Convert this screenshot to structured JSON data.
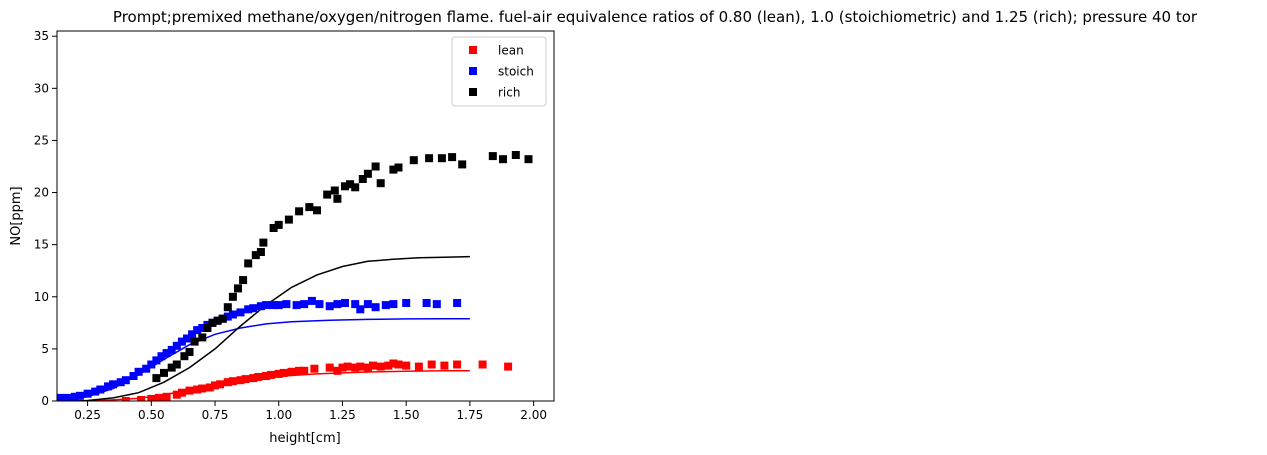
{
  "chart_data": {
    "type": "scatter",
    "title": "Prompt;premixed methane/oxygen/nitrogen flame. fuel-air equivalence ratios of 0.80 (lean), 1.0 (stoichiometric) and 1.25 (rich); pressure 40 tor",
    "xlabel": "height[cm]",
    "ylabel": "NO[ppm]",
    "xlim": [
      0.13,
      2.08
    ],
    "ylim": [
      0,
      35.5
    ],
    "xticks": [
      0.25,
      0.5,
      0.75,
      1.0,
      1.25,
      1.5,
      1.75,
      2.0
    ],
    "xtick_labels": [
      "0.25",
      "0.50",
      "0.75",
      "1.00",
      "1.25",
      "1.50",
      "1.75",
      "2.00"
    ],
    "yticks": [
      0,
      5,
      10,
      15,
      20,
      25,
      30,
      35
    ],
    "ytick_labels": [
      "0",
      "5",
      "10",
      "15",
      "20",
      "25",
      "30",
      "35"
    ],
    "grid": false,
    "legend": "top-right",
    "series": [
      {
        "name": "lean",
        "color": "#ff0000",
        "points": [
          [
            0.4,
            0.0
          ],
          [
            0.46,
            0.1
          ],
          [
            0.5,
            0.2
          ],
          [
            0.53,
            0.3
          ],
          [
            0.56,
            0.4
          ],
          [
            0.6,
            0.6
          ],
          [
            0.62,
            0.8
          ],
          [
            0.65,
            1.0
          ],
          [
            0.68,
            1.1
          ],
          [
            0.7,
            1.2
          ],
          [
            0.73,
            1.3
          ],
          [
            0.75,
            1.5
          ],
          [
            0.77,
            1.6
          ],
          [
            0.8,
            1.8
          ],
          [
            0.82,
            1.9
          ],
          [
            0.85,
            2.0
          ],
          [
            0.87,
            2.1
          ],
          [
            0.9,
            2.2
          ],
          [
            0.92,
            2.3
          ],
          [
            0.95,
            2.4
          ],
          [
            0.97,
            2.5
          ],
          [
            1.0,
            2.6
          ],
          [
            1.02,
            2.7
          ],
          [
            1.05,
            2.8
          ],
          [
            1.08,
            2.9
          ],
          [
            1.1,
            2.9
          ],
          [
            1.14,
            3.1
          ],
          [
            1.2,
            3.2
          ],
          [
            1.23,
            2.9
          ],
          [
            1.25,
            3.2
          ],
          [
            1.27,
            3.3
          ],
          [
            1.3,
            3.2
          ],
          [
            1.32,
            3.3
          ],
          [
            1.35,
            3.2
          ],
          [
            1.37,
            3.4
          ],
          [
            1.4,
            3.3
          ],
          [
            1.43,
            3.4
          ],
          [
            1.45,
            3.6
          ],
          [
            1.47,
            3.5
          ],
          [
            1.5,
            3.4
          ],
          [
            1.55,
            3.3
          ],
          [
            1.6,
            3.5
          ],
          [
            1.65,
            3.4
          ],
          [
            1.7,
            3.5
          ],
          [
            1.8,
            3.5
          ],
          [
            1.9,
            3.3
          ]
        ],
        "model_x": [
          0.15,
          0.3,
          0.45,
          0.55,
          0.65,
          0.75,
          0.85,
          0.95,
          1.05,
          1.15,
          1.25,
          1.35,
          1.5,
          1.65,
          1.75
        ],
        "model_y": [
          0.0,
          0.05,
          0.25,
          0.6,
          1.05,
          1.55,
          1.95,
          2.25,
          2.45,
          2.6,
          2.7,
          2.78,
          2.85,
          2.9,
          2.9
        ]
      },
      {
        "name": "stoich",
        "color": "#0000ff",
        "points": [
          [
            0.14,
            0.3
          ],
          [
            0.17,
            0.3
          ],
          [
            0.2,
            0.4
          ],
          [
            0.22,
            0.5
          ],
          [
            0.25,
            0.7
          ],
          [
            0.28,
            0.9
          ],
          [
            0.3,
            1.1
          ],
          [
            0.33,
            1.4
          ],
          [
            0.35,
            1.6
          ],
          [
            0.38,
            1.8
          ],
          [
            0.4,
            2.0
          ],
          [
            0.43,
            2.4
          ],
          [
            0.45,
            2.8
          ],
          [
            0.48,
            3.1
          ],
          [
            0.5,
            3.5
          ],
          [
            0.52,
            3.9
          ],
          [
            0.54,
            4.3
          ],
          [
            0.56,
            4.6
          ],
          [
            0.58,
            4.9
          ],
          [
            0.6,
            5.3
          ],
          [
            0.62,
            5.7
          ],
          [
            0.64,
            6.0
          ],
          [
            0.66,
            6.4
          ],
          [
            0.68,
            6.8
          ],
          [
            0.7,
            7.0
          ],
          [
            0.72,
            7.3
          ],
          [
            0.74,
            7.5
          ],
          [
            0.76,
            7.7
          ],
          [
            0.78,
            7.9
          ],
          [
            0.8,
            8.1
          ],
          [
            0.82,
            8.3
          ],
          [
            0.85,
            8.5
          ],
          [
            0.88,
            8.8
          ],
          [
            0.9,
            8.9
          ],
          [
            0.93,
            9.1
          ],
          [
            0.95,
            9.2
          ],
          [
            0.98,
            9.2
          ],
          [
            1.0,
            9.2
          ],
          [
            1.03,
            9.3
          ],
          [
            1.07,
            9.2
          ],
          [
            1.1,
            9.3
          ],
          [
            1.13,
            9.6
          ],
          [
            1.16,
            9.3
          ],
          [
            1.2,
            9.1
          ],
          [
            1.23,
            9.3
          ],
          [
            1.26,
            9.4
          ],
          [
            1.3,
            9.3
          ],
          [
            1.32,
            8.8
          ],
          [
            1.35,
            9.3
          ],
          [
            1.38,
            9.0
          ],
          [
            1.42,
            9.2
          ],
          [
            1.45,
            9.3
          ],
          [
            1.5,
            9.4
          ],
          [
            1.58,
            9.4
          ],
          [
            1.62,
            9.3
          ],
          [
            1.7,
            9.4
          ]
        ],
        "model_x": [
          0.15,
          0.25,
          0.35,
          0.45,
          0.55,
          0.65,
          0.75,
          0.85,
          0.95,
          1.05,
          1.2,
          1.35,
          1.5,
          1.65,
          1.75
        ],
        "model_y": [
          0.1,
          0.4,
          1.2,
          2.5,
          4.0,
          5.4,
          6.4,
          7.0,
          7.4,
          7.6,
          7.75,
          7.83,
          7.88,
          7.9,
          7.9
        ]
      },
      {
        "name": "rich",
        "color": "#000000",
        "points": [
          [
            0.52,
            2.2
          ],
          [
            0.55,
            2.7
          ],
          [
            0.58,
            3.2
          ],
          [
            0.6,
            3.5
          ],
          [
            0.63,
            4.3
          ],
          [
            0.65,
            4.7
          ],
          [
            0.67,
            5.7
          ],
          [
            0.7,
            6.1
          ],
          [
            0.72,
            7.0
          ],
          [
            0.74,
            7.5
          ],
          [
            0.76,
            7.7
          ],
          [
            0.78,
            7.9
          ],
          [
            0.8,
            9.0
          ],
          [
            0.82,
            10.0
          ],
          [
            0.84,
            10.8
          ],
          [
            0.86,
            11.6
          ],
          [
            0.88,
            13.2
          ],
          [
            0.91,
            14.0
          ],
          [
            0.93,
            14.3
          ],
          [
            0.94,
            15.2
          ],
          [
            0.98,
            16.6
          ],
          [
            1.0,
            16.9
          ],
          [
            1.04,
            17.4
          ],
          [
            1.08,
            18.2
          ],
          [
            1.12,
            18.6
          ],
          [
            1.15,
            18.3
          ],
          [
            1.19,
            19.8
          ],
          [
            1.22,
            20.2
          ],
          [
            1.23,
            19.4
          ],
          [
            1.26,
            20.6
          ],
          [
            1.28,
            20.8
          ],
          [
            1.3,
            20.5
          ],
          [
            1.33,
            21.3
          ],
          [
            1.35,
            21.8
          ],
          [
            1.38,
            22.5
          ],
          [
            1.4,
            20.9
          ],
          [
            1.45,
            22.2
          ],
          [
            1.47,
            22.4
          ],
          [
            1.53,
            23.1
          ],
          [
            1.59,
            23.3
          ],
          [
            1.64,
            23.3
          ],
          [
            1.68,
            23.4
          ],
          [
            1.72,
            22.7
          ],
          [
            1.84,
            23.5
          ],
          [
            1.88,
            23.2
          ],
          [
            1.93,
            23.6
          ],
          [
            1.98,
            23.2
          ]
        ],
        "model_x": [
          0.15,
          0.25,
          0.35,
          0.45,
          0.55,
          0.65,
          0.75,
          0.85,
          0.95,
          1.05,
          1.15,
          1.25,
          1.35,
          1.45,
          1.55,
          1.65,
          1.75
        ],
        "model_y": [
          0.0,
          0.05,
          0.3,
          0.8,
          1.8,
          3.2,
          5.0,
          7.2,
          9.2,
          10.9,
          12.1,
          12.9,
          13.4,
          13.6,
          13.75,
          13.8,
          13.85
        ]
      }
    ]
  }
}
